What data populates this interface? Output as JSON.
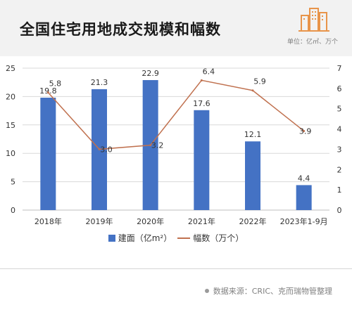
{
  "header": {
    "title": "全国住宅用地成交规模和幅数",
    "unit": "单位：亿㎡、万个"
  },
  "legend": {
    "bar_label": "建面（亿m²）",
    "line_label": "幅数（万个）"
  },
  "source": "数据来源：CRIC、克而瑞物管整理",
  "colors": {
    "bar": "#4472C4",
    "line": "#C0714F",
    "grid": "#d9d9d9"
  },
  "chart_data": {
    "type": "bar",
    "categories": [
      "2018年",
      "2019年",
      "2020年",
      "2021年",
      "2022年",
      "2023年1-9月"
    ],
    "series": [
      {
        "name": "建面（亿m²）",
        "type": "bar",
        "axis": "left",
        "values": [
          19.8,
          21.3,
          22.9,
          17.6,
          12.1,
          4.4
        ]
      },
      {
        "name": "幅数（万个）",
        "type": "line",
        "axis": "right",
        "values": [
          5.8,
          3.0,
          3.2,
          6.4,
          5.9,
          3.9
        ]
      }
    ],
    "y_left": {
      "ticks": [
        0,
        5,
        10,
        15,
        20,
        25
      ],
      "lim": [
        0,
        25
      ]
    },
    "y_right": {
      "ticks": [
        0,
        1,
        2,
        3,
        4,
        5,
        6,
        7
      ],
      "lim": [
        0,
        7
      ]
    },
    "grid": true,
    "legend_position": "bottom"
  }
}
